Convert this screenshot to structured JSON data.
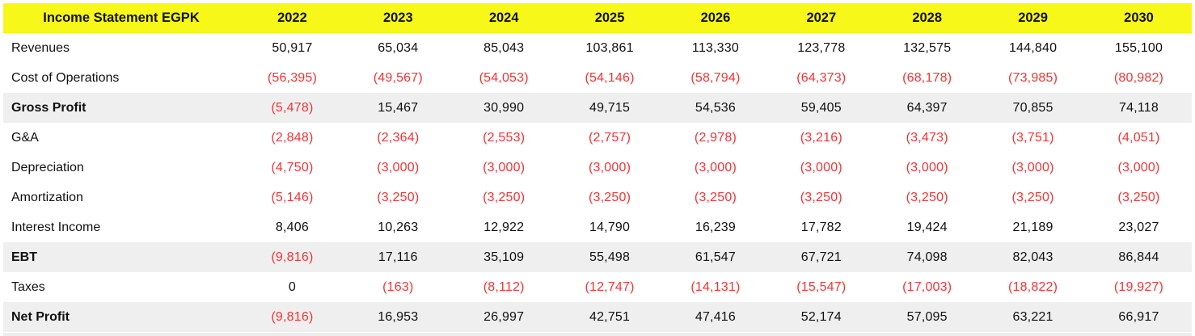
{
  "chart_data": {
    "type": "table",
    "title": "Income Statement EGPK",
    "columns": [
      "2022",
      "2023",
      "2024",
      "2025",
      "2026",
      "2027",
      "2028",
      "2029",
      "2030"
    ],
    "rows": [
      {
        "label": "Revenues",
        "emphasis": false,
        "values": [
          "50,917",
          "65,034",
          "85,043",
          "103,861",
          "113,330",
          "123,778",
          "132,575",
          "144,840",
          "155,100"
        ]
      },
      {
        "label": "Cost of Operations",
        "emphasis": false,
        "values": [
          "(56,395)",
          "(49,567)",
          "(54,053)",
          "(54,146)",
          "(58,794)",
          "(64,373)",
          "(68,178)",
          "(73,985)",
          "(80,982)"
        ]
      },
      {
        "label": "Gross Profit",
        "emphasis": true,
        "values": [
          "(5,478)",
          "15,467",
          "30,990",
          "49,715",
          "54,536",
          "59,405",
          "64,397",
          "70,855",
          "74,118"
        ]
      },
      {
        "label": "G&A",
        "emphasis": false,
        "values": [
          "(2,848)",
          "(2,364)",
          "(2,553)",
          "(2,757)",
          "(2,978)",
          "(3,216)",
          "(3,473)",
          "(3,751)",
          "(4,051)"
        ]
      },
      {
        "label": "Depreciation",
        "emphasis": false,
        "values": [
          "(4,750)",
          "(3,000)",
          "(3,000)",
          "(3,000)",
          "(3,000)",
          "(3,000)",
          "(3,000)",
          "(3,000)",
          "(3,000)"
        ]
      },
      {
        "label": "Amortization",
        "emphasis": false,
        "values": [
          "(5,146)",
          "(3,250)",
          "(3,250)",
          "(3,250)",
          "(3,250)",
          "(3,250)",
          "(3,250)",
          "(3,250)",
          "(3,250)"
        ]
      },
      {
        "label": "Interest Income",
        "emphasis": false,
        "values": [
          "8,406",
          "10,263",
          "12,922",
          "14,790",
          "16,239",
          "17,782",
          "19,424",
          "21,189",
          "23,027"
        ]
      },
      {
        "label": "EBT",
        "emphasis": true,
        "values": [
          "(9,816)",
          "17,116",
          "35,109",
          "55,498",
          "61,547",
          "67,721",
          "74,098",
          "82,043",
          "86,844"
        ]
      },
      {
        "label": "Taxes",
        "emphasis": false,
        "values": [
          "0",
          "(163)",
          "(8,112)",
          "(12,747)",
          "(14,131)",
          "(15,547)",
          "(17,003)",
          "(18,822)",
          "(19,927)"
        ]
      },
      {
        "label": "Net Profit",
        "emphasis": true,
        "values": [
          "(9,816)",
          "16,953",
          "26,997",
          "42,751",
          "47,416",
          "52,174",
          "57,095",
          "63,221",
          "66,917"
        ]
      }
    ]
  },
  "colors": {
    "header_bg": "#F7F719",
    "negative": "#F43434",
    "subtotal_bg": "#EFEFEF"
  }
}
